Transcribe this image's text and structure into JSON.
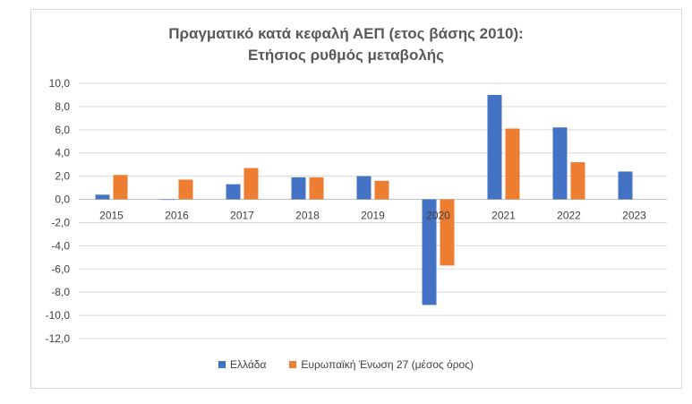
{
  "chart_data": {
    "type": "bar",
    "title": "Πραγματικό κατά κεφαλή ΑΕΠ (ετος βάσης 2010):",
    "subtitle": "Ετήσιος ρυθμός μεταβολής",
    "categories": [
      "2015",
      "2016",
      "2017",
      "2018",
      "2019",
      "2020",
      "2021",
      "2022",
      "2023"
    ],
    "series": [
      {
        "name": "Ελλάδα",
        "color": "#4472c4",
        "values": [
          0.4,
          0.0,
          1.3,
          1.9,
          2.0,
          -9.1,
          9.0,
          6.2,
          2.4
        ]
      },
      {
        "name": "Ευρωπαϊκή Ένωση 27 (μέσος όρος)",
        "color": "#ed7d31",
        "values": [
          2.1,
          1.7,
          2.7,
          1.9,
          1.6,
          -5.7,
          6.1,
          3.2,
          null
        ]
      }
    ],
    "yticks": [
      "10,0",
      "8,0",
      "6,0",
      "4,0",
      "2,0",
      "0,0",
      "-2,0",
      "-4,0",
      "-6,0",
      "-8,0",
      "-10,0",
      "-12,0"
    ],
    "ylim": [
      -12,
      10
    ],
    "grid": true,
    "legend": "bottom"
  }
}
